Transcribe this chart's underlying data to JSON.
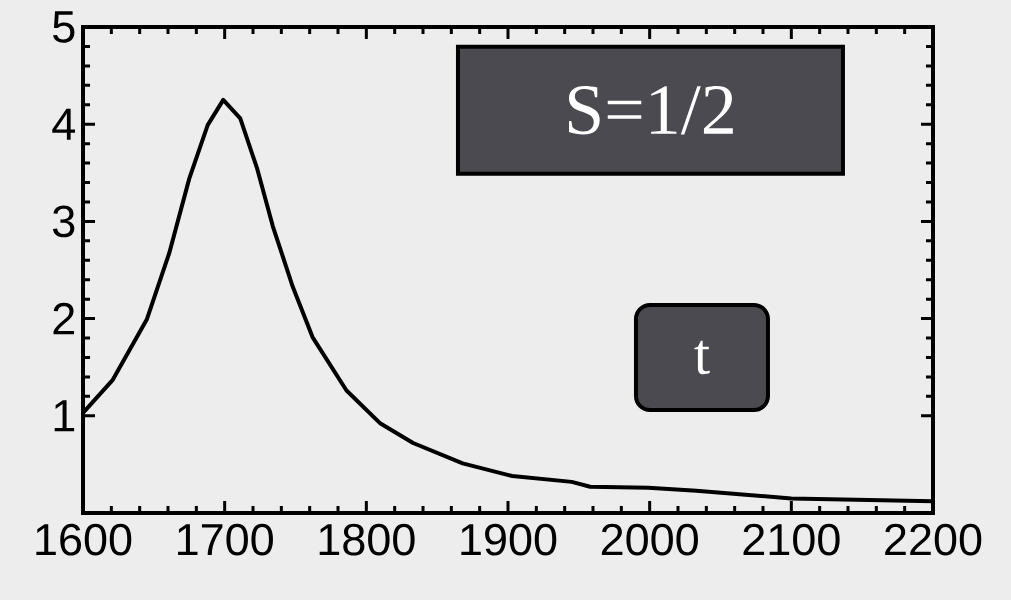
{
  "chart_data": {
    "type": "line",
    "x": [
      1600,
      1621,
      1645,
      1661,
      1675,
      1688,
      1699,
      1711,
      1723,
      1734,
      1748,
      1762,
      1786,
      1810,
      1833,
      1868,
      1903,
      1945,
      1958,
      1999,
      2033,
      2100,
      2200
    ],
    "series": [
      {
        "color": "#000000",
        "values": [
          1.03,
          1.37,
          1.99,
          2.68,
          3.44,
          3.99,
          4.25,
          4.06,
          3.54,
          2.95,
          2.33,
          1.81,
          1.26,
          0.92,
          0.72,
          0.51,
          0.38,
          0.32,
          0.27,
          0.26,
          0.23,
          0.15,
          0.12
        ]
      }
    ],
    "xlim": [
      1600,
      2200
    ],
    "ylim": [
      0,
      5
    ],
    "xticks": [
      1600,
      1700,
      1800,
      1900,
      2000,
      2100,
      2200
    ],
    "yticks": [
      1,
      2,
      3,
      4,
      5
    ],
    "annotations": [
      "S=1/2",
      "t"
    ]
  }
}
